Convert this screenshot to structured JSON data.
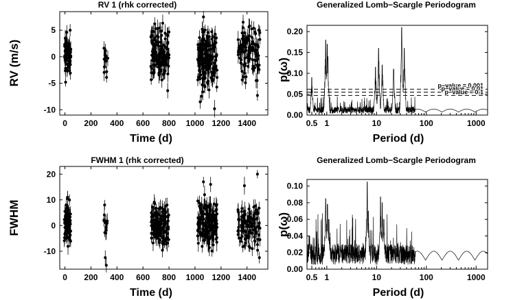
{
  "chart_data": [
    {
      "type": "scatter",
      "title": "RV 1 (rhk corrected)",
      "xlabel": "Time (d)",
      "ylabel": "RV  (m/s)",
      "xlim": [
        -40,
        1560
      ],
      "ylim": [
        -11,
        8.5
      ],
      "xticks": [
        0,
        200,
        400,
        600,
        800,
        1000,
        1200,
        1400
      ],
      "xtick_labels": [
        "0",
        "200",
        "400",
        "600",
        "800",
        "1000",
        "1200",
        "1400"
      ],
      "yticks": [
        5,
        0,
        -5,
        -10
      ],
      "ytick_labels": [
        "5",
        "0",
        "-5",
        "-10"
      ],
      "error_bars": true,
      "clusters": [
        {
          "x": [
            -5,
            45
          ],
          "y_center": 0.5,
          "y_spread": 2.5,
          "n": 70
        },
        {
          "x": [
            300,
            330
          ],
          "y_center": -0.5,
          "y_spread": 1.5,
          "n": 12
        },
        {
          "x": [
            660,
            800
          ],
          "y_center": 0.5,
          "y_spread": 3,
          "n": 140
        },
        {
          "x": [
            1020,
            1170
          ],
          "y_center": 0,
          "y_spread": 3.5,
          "n": 170
        },
        {
          "x": [
            1330,
            1500
          ],
          "y_center": 1,
          "y_spread": 3,
          "n": 110
        }
      ],
      "outliers": [
        {
          "x": 5,
          "y": -4.8
        },
        {
          "x": 320,
          "y": -3.9
        },
        {
          "x": 690,
          "y": 6.2
        },
        {
          "x": 790,
          "y": -6.4
        },
        {
          "x": 1040,
          "y": -8.5
        },
        {
          "x": 1065,
          "y": 7.5
        },
        {
          "x": 1150,
          "y": -9.8
        },
        {
          "x": 1370,
          "y": 6.5
        },
        {
          "x": 1420,
          "y": 5.8
        },
        {
          "x": 1480,
          "y": -7.3
        },
        {
          "x": 1490,
          "y": 5.0
        },
        {
          "x": 1470,
          "y": -4.5
        }
      ]
    },
    {
      "type": "line",
      "title": "Generalized Lomb−Scargle Periodogram",
      "xlabel": "Period  (d)",
      "ylabel": "p(ω)",
      "xscale": "log",
      "xlim": [
        0.4,
        1700
      ],
      "ylim": [
        0,
        0.215
      ],
      "xticks": [
        0.5,
        1,
        10,
        100,
        1000
      ],
      "xtick_labels": [
        "0.5",
        "1",
        "10",
        "100",
        "1000"
      ],
      "yticks": [
        0.0,
        0.05,
        0.1,
        0.15,
        0.2
      ],
      "ytick_labels": [
        "0.00",
        "0.05",
        "0.10",
        "0.15",
        "0.20"
      ],
      "noise_level": 0.012,
      "peaks": [
        {
          "period": 0.5,
          "power": 0.09
        },
        {
          "period": 0.95,
          "power": 0.18
        },
        {
          "period": 1.02,
          "power": 0.17
        },
        {
          "period": 1.05,
          "power": 0.14
        },
        {
          "period": 9.5,
          "power": 0.115
        },
        {
          "period": 11,
          "power": 0.16
        },
        {
          "period": 13,
          "power": 0.12
        },
        {
          "period": 22,
          "power": 0.11
        },
        {
          "period": 32,
          "power": 0.21
        },
        {
          "period": 36,
          "power": 0.16
        }
      ],
      "thresholds": [
        {
          "label": "p−value = 0.001",
          "value": 0.062
        },
        {
          "label": "p−value = 0.01",
          "value": 0.055
        },
        {
          "label": "p−value = 0.1",
          "value": 0.047
        }
      ]
    },
    {
      "type": "scatter",
      "title": "FWHM 1  (rhk corrected)",
      "xlabel": "Time (d)",
      "ylabel": "FWHM",
      "xlim": [
        -40,
        1560
      ],
      "ylim": [
        -17,
        23
      ],
      "xticks": [
        0,
        200,
        400,
        600,
        800,
        1000,
        1200,
        1400
      ],
      "xtick_labels": [
        "0",
        "200",
        "400",
        "600",
        "800",
        "1000",
        "1200",
        "1400"
      ],
      "yticks": [
        20,
        10,
        0,
        -10
      ],
      "ytick_labels": [
        "20",
        "10",
        "0",
        "-10"
      ],
      "error_bars": true,
      "clusters": [
        {
          "x": [
            -5,
            45
          ],
          "y_center": 1,
          "y_spread": 4.5,
          "n": 70
        },
        {
          "x": [
            300,
            330
          ],
          "y_center": 0,
          "y_spread": 3,
          "n": 12
        },
        {
          "x": [
            660,
            800
          ],
          "y_center": 0,
          "y_spread": 5,
          "n": 140
        },
        {
          "x": [
            1020,
            1170
          ],
          "y_center": 1,
          "y_spread": 5.5,
          "n": 170
        },
        {
          "x": [
            1330,
            1500
          ],
          "y_center": 0,
          "y_spread": 5.5,
          "n": 110
        }
      ],
      "outliers": [
        {
          "x": 20,
          "y": 11
        },
        {
          "x": 305,
          "y": 8
        },
        {
          "x": 310,
          "y": -12.5
        },
        {
          "x": 318,
          "y": -15.5
        },
        {
          "x": 690,
          "y": 8.5
        },
        {
          "x": 1065,
          "y": 17
        },
        {
          "x": 1120,
          "y": 16
        },
        {
          "x": 1380,
          "y": 15.5
        },
        {
          "x": 1480,
          "y": 20
        },
        {
          "x": 1495,
          "y": -12.5
        },
        {
          "x": 1440,
          "y": -9
        }
      ]
    },
    {
      "type": "line",
      "title": "Generalized Lomb−Scargle Periodogram",
      "xlabel": "Period  (d)",
      "ylabel": "p(ω)",
      "xscale": "log",
      "xlim": [
        0.4,
        1700
      ],
      "ylim": [
        0,
        0.108
      ],
      "xticks": [
        0.5,
        1,
        10,
        100,
        1000
      ],
      "xtick_labels": [
        "0.5",
        "1",
        "10",
        "100",
        "1000"
      ],
      "yticks": [
        0.0,
        0.02,
        0.04,
        0.06,
        0.08,
        0.1
      ],
      "ytick_labels": [
        "0.00",
        "0.02",
        "0.04",
        "0.06",
        "0.08",
        "0.10"
      ],
      "noise_level": 0.018,
      "peaks": [
        {
          "period": 0.45,
          "power": 0.04
        },
        {
          "period": 0.95,
          "power": 0.085
        },
        {
          "period": 1.03,
          "power": 0.078
        },
        {
          "period": 1.1,
          "power": 0.06
        },
        {
          "period": 6.5,
          "power": 0.105
        },
        {
          "period": 6.8,
          "power": 0.07
        },
        {
          "period": 12,
          "power": 0.087
        },
        {
          "period": 13,
          "power": 0.08
        },
        {
          "period": 14,
          "power": 0.06
        }
      ],
      "thresholds": []
    }
  ]
}
